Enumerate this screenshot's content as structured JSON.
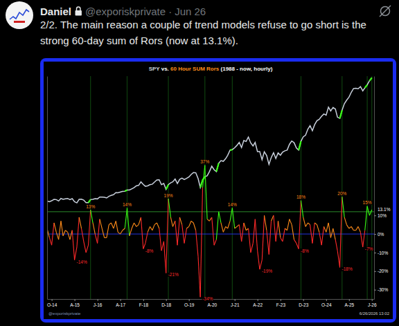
{
  "post": {
    "author": "Daniel",
    "handle": "@exporiskprivate",
    "separator": "·",
    "date": "Jun 26",
    "text": "2/2. The main reason a couple of trend models refuse to go short is the strong 60-day sum of Rors (now at 13.1%)."
  },
  "chart_data": {
    "type": "line",
    "title": "SPY vs. 60 Hour SUM Rors (1988 - now, hourly)",
    "source": "@exporiskprivate",
    "timestamp": "6/26/2026 13:02",
    "x": [
      "2014-08",
      "2014-09",
      "2014-10",
      "2014-11",
      "2014-12",
      "2015-01",
      "2015-02",
      "2015-03",
      "2015-04",
      "2015-05",
      "2015-06",
      "2015-07",
      "2015-08",
      "2015-09",
      "2015-10",
      "2015-11",
      "2015-12",
      "2016-01",
      "2016-02",
      "2016-03",
      "2016-04",
      "2016-05",
      "2016-06",
      "2016-07",
      "2016-08",
      "2016-09",
      "2016-10",
      "2016-11",
      "2016-12",
      "2017-01",
      "2017-02",
      "2017-03",
      "2017-04",
      "2017-05",
      "2017-06",
      "2017-07",
      "2017-08",
      "2017-09",
      "2017-10",
      "2017-11",
      "2017-12",
      "2018-01",
      "2018-02",
      "2018-03",
      "2018-04",
      "2018-05",
      "2018-06",
      "2018-07",
      "2018-08",
      "2018-09",
      "2018-10",
      "2018-11",
      "2018-12",
      "2019-01",
      "2019-02",
      "2019-03",
      "2019-04",
      "2019-05",
      "2019-06",
      "2019-07",
      "2019-08",
      "2019-09",
      "2019-10",
      "2019-11",
      "2019-12",
      "2020-01",
      "2020-02",
      "2020-03",
      "2020-04",
      "2020-05",
      "2020-06",
      "2020-07",
      "2020-08",
      "2020-09",
      "2020-10",
      "2020-11",
      "2020-12",
      "2021-01",
      "2021-02",
      "2021-03",
      "2021-04",
      "2021-05",
      "2021-06",
      "2021-07",
      "2021-08",
      "2021-09",
      "2021-10",
      "2021-11",
      "2021-12",
      "2022-01",
      "2022-02",
      "2022-03",
      "2022-04",
      "2022-05",
      "2022-06",
      "2022-07",
      "2022-08",
      "2022-09",
      "2022-10",
      "2022-11",
      "2022-12",
      "2023-01",
      "2023-02",
      "2023-03",
      "2023-04",
      "2023-05",
      "2023-06",
      "2023-07",
      "2023-08",
      "2023-09",
      "2023-10",
      "2023-11",
      "2023-12",
      "2024-01",
      "2024-02",
      "2024-03",
      "2024-04",
      "2024-05",
      "2024-06",
      "2024-07",
      "2024-08",
      "2024-09",
      "2024-10",
      "2024-11",
      "2024-12",
      "2025-01",
      "2025-02",
      "2025-03",
      "2025-04",
      "2025-05",
      "2025-06",
      "2025-07",
      "2025-08",
      "2025-09",
      "2025-10",
      "2025-11",
      "2025-12",
      "2026-01",
      "2026-02",
      "2026-03",
      "2026-04",
      "2026-05",
      "2026-06"
    ],
    "xlim": [
      "2014-08",
      "2026-07"
    ],
    "xticks": [
      {
        "value": "2014-10",
        "label": "O-14"
      },
      {
        "value": "2015-08",
        "label": "A-15"
      },
      {
        "value": "2016-06",
        "label": "J-16"
      },
      {
        "value": "2017-04",
        "label": "A-17"
      },
      {
        "value": "2018-02",
        "label": "F-18"
      },
      {
        "value": "2018-12",
        "label": "D-18"
      },
      {
        "value": "2019-10",
        "label": "O-19"
      },
      {
        "value": "2020-08",
        "label": "A-20"
      },
      {
        "value": "2021-06",
        "label": "J-21"
      },
      {
        "value": "2022-04",
        "label": "A-22"
      },
      {
        "value": "2023-02",
        "label": "F-23"
      },
      {
        "value": "2023-12",
        "label": "D-23"
      },
      {
        "value": "2024-10",
        "label": "O-24"
      },
      {
        "value": "2025-08",
        "label": "A-25"
      },
      {
        "value": "2026-06",
        "label": "J-26"
      }
    ],
    "ylim": [
      -35,
      85
    ],
    "yticks": [
      {
        "value": 10,
        "label": "10%"
      },
      {
        "value": 0,
        "label": "0%"
      },
      {
        "value": -10,
        "label": "-10%"
      },
      {
        "value": -20,
        "label": "-20%"
      },
      {
        "value": -30,
        "label": "-30%"
      }
    ],
    "y2lim": [
      -220,
      735
    ],
    "series": [
      {
        "name": "SPY",
        "color": "#c8d0dc",
        "axis": "y2",
        "values": [
          200,
          197,
          201,
          207,
          206,
          200,
          211,
          207,
          209,
          211,
          206,
          210,
          197,
          192,
          207,
          208,
          204,
          193,
          193,
          206,
          207,
          210,
          209,
          217,
          217,
          216,
          213,
          220,
          224,
          227,
          236,
          235,
          238,
          241,
          242,
          247,
          247,
          252,
          257,
          265,
          267,
          282,
          271,
          263,
          265,
          270,
          272,
          281,
          290,
          291,
          270,
          275,
          250,
          270,
          278,
          282,
          294,
          275,
          293,
          298,
          292,
          297,
          303,
          314,
          322,
          321,
          296,
          258,
          290,
          304,
          308,
          326,
          349,
          334,
          326,
          362,
          373,
          370,
          381,
          396,
          418,
          420,
          428,
          438,
          451,
          429,
          459,
          455,
          474,
          449,
          436,
          451,
          412,
          412,
          377,
          411,
          395,
          357,
          386,
          407,
          382,
          406,
          396,
          409,
          415,
          418,
          443,
          457,
          450,
          427,
          418,
          456,
          475,
          482,
          508,
          523,
          501,
          527,
          544,
          550,
          563,
          573,
          568,
          602,
          586,
          601,
          594,
          559,
          554,
          589,
          617,
          632,
          645,
          666,
          682,
          683,
          681,
          690,
          672,
          685,
          698,
          715,
          728
        ]
      },
      {
        "name": "60 Hour SUM Rors",
        "color": "#ff8c1a",
        "values": [
          3,
          -2,
          -6,
          6,
          1,
          -3,
          7,
          -1,
          2,
          1,
          -3,
          2,
          -14,
          -7,
          9,
          3,
          -4,
          -10,
          -6,
          13,
          6,
          0,
          -5,
          8,
          3,
          -2,
          -2,
          5,
          6,
          3,
          7,
          1,
          0,
          2,
          3,
          14,
          -1,
          3,
          6,
          4,
          5,
          9,
          -8,
          -5,
          1,
          4,
          2,
          5,
          6,
          3,
          -9,
          -4,
          -21,
          19,
          9,
          4,
          7,
          -6,
          9,
          5,
          -5,
          3,
          4,
          7,
          6,
          2,
          -12,
          -34,
          25,
          37,
          8,
          7,
          9,
          -6,
          -3,
          12,
          6,
          1,
          4,
          3,
          7,
          14,
          3,
          4,
          5,
          -4,
          6,
          2,
          3,
          -10,
          -5,
          8,
          -9,
          -19,
          -14,
          10,
          2,
          -11,
          7,
          10,
          -4,
          7,
          -2,
          -4,
          3,
          2,
          8,
          5,
          -3,
          -5,
          -8,
          18,
          9,
          4,
          6,
          5,
          -5,
          6,
          5,
          1,
          -6,
          4,
          1,
          6,
          -2,
          3,
          -3,
          -9,
          -18,
          20,
          9,
          5,
          3,
          4,
          2,
          2,
          4,
          1,
          -7,
          2,
          15,
          10,
          13.1
        ]
      }
    ],
    "reference_lines": [
      {
        "value": 12,
        "color": "#2a8a2a"
      },
      {
        "value": 0,
        "color": "#2233dd"
      }
    ],
    "annotations": [
      {
        "x": "2015-08",
        "text": "-14%"
      },
      {
        "x": "2016-03",
        "text": "13%"
      },
      {
        "x": "2017-07",
        "text": "14%"
      },
      {
        "x": "2018-02",
        "text": "-8%"
      },
      {
        "x": "2018-12",
        "text": "-21%"
      },
      {
        "x": "2019-01",
        "text": "19%"
      },
      {
        "x": "2020-03",
        "text": "-34%"
      },
      {
        "x": "2020-05",
        "text": "37%"
      },
      {
        "x": "2021-05",
        "text": "14%"
      },
      {
        "x": "2022-05",
        "text": "-19%"
      },
      {
        "x": "2023-10",
        "text": "-8%"
      },
      {
        "x": "2023-11",
        "text": "18%"
      },
      {
        "x": "2025-04",
        "text": "-18%"
      },
      {
        "x": "2025-05",
        "text": "20%"
      },
      {
        "x": "2026-02",
        "text": "-7%"
      },
      {
        "x": "2026-04",
        "text": "15%"
      },
      {
        "x": "2026-06",
        "text": "13.1%"
      }
    ]
  }
}
